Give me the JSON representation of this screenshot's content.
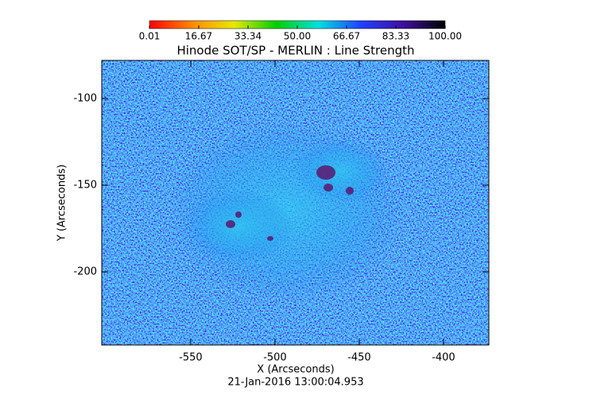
{
  "chart_data": {
    "type": "image",
    "title": "Hinode SOT/SP - MERLIN : Line Strength",
    "x_label": "X (Arcseconds)",
    "y_label": "Y (Arcseconds)",
    "footer": "21-Jan-2016 13:00:04.953",
    "xlim": [
      -602.8,
      -373.1
    ],
    "ylim": [
      -242.2,
      -78
    ],
    "xticks": [
      -550,
      -500,
      -450,
      -400
    ],
    "yticks": [
      -100,
      -150,
      -200
    ],
    "colorbar": {
      "lim": [
        0.01,
        100
      ],
      "ticks": [
        0.01,
        16.67,
        33.34,
        {
          "value": 50,
          "label": "50.00"
        },
        66.67,
        83.33,
        {
          "value": 100,
          "label": "100.00"
        }
      ],
      "colors": [
        "#ff0000",
        "#ff8800",
        "#e8e800",
        "#00d000",
        "#00e0e0",
        "#2040ff",
        "#4010a0",
        "#000000"
      ]
    }
  }
}
